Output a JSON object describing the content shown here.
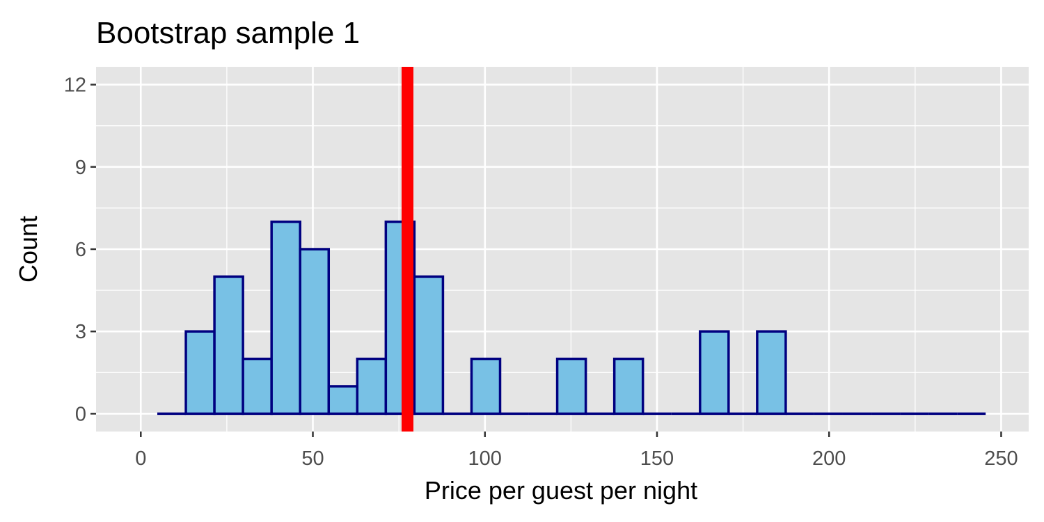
{
  "chart_data": {
    "type": "bar",
    "title": "Bootstrap sample 1",
    "xlabel": "Price per guest per night",
    "ylabel": "Count",
    "bin_width": 8.3,
    "bins": [
      {
        "x0": 4.8,
        "x1": 13.1,
        "count": 0
      },
      {
        "x0": 13.1,
        "x1": 21.4,
        "count": 3
      },
      {
        "x0": 21.4,
        "x1": 29.7,
        "count": 5
      },
      {
        "x0": 29.7,
        "x1": 38.0,
        "count": 2
      },
      {
        "x0": 38.0,
        "x1": 46.3,
        "count": 7
      },
      {
        "x0": 46.3,
        "x1": 54.6,
        "count": 6
      },
      {
        "x0": 54.6,
        "x1": 62.9,
        "count": 1
      },
      {
        "x0": 62.9,
        "x1": 71.2,
        "count": 2
      },
      {
        "x0": 71.2,
        "x1": 79.5,
        "count": 7
      },
      {
        "x0": 79.5,
        "x1": 87.8,
        "count": 5
      },
      {
        "x0": 87.8,
        "x1": 96.1,
        "count": 0
      },
      {
        "x0": 96.1,
        "x1": 104.4,
        "count": 2
      },
      {
        "x0": 104.4,
        "x1": 112.7,
        "count": 0
      },
      {
        "x0": 112.7,
        "x1": 121.0,
        "count": 0
      },
      {
        "x0": 121.0,
        "x1": 129.3,
        "count": 2
      },
      {
        "x0": 129.3,
        "x1": 137.6,
        "count": 0
      },
      {
        "x0": 137.6,
        "x1": 145.9,
        "count": 2
      },
      {
        "x0": 145.9,
        "x1": 154.2,
        "count": 0
      },
      {
        "x0": 154.2,
        "x1": 162.5,
        "count": 0
      },
      {
        "x0": 162.5,
        "x1": 170.8,
        "count": 3
      },
      {
        "x0": 170.8,
        "x1": 179.1,
        "count": 0
      },
      {
        "x0": 179.1,
        "x1": 187.4,
        "count": 3
      },
      {
        "x0": 187.4,
        "x1": 195.7,
        "count": 0
      },
      {
        "x0": 195.7,
        "x1": 204.0,
        "count": 0
      },
      {
        "x0": 204.0,
        "x1": 212.3,
        "count": 0
      },
      {
        "x0": 212.3,
        "x1": 220.6,
        "count": 0
      },
      {
        "x0": 220.6,
        "x1": 228.9,
        "count": 0
      },
      {
        "x0": 228.9,
        "x1": 237.2,
        "count": 0
      },
      {
        "x0": 237.2,
        "x1": 245.5,
        "count": 0
      }
    ],
    "reference_line": {
      "x": 77.5,
      "color": "#ff0000"
    },
    "xlim": [
      -13,
      258
    ],
    "ylim": [
      -0.65,
      12.65
    ],
    "x_ticks": [
      0,
      50,
      100,
      150,
      200,
      250
    ],
    "x_tick_labels": [
      "0",
      "50",
      "100",
      "150",
      "200",
      "250"
    ],
    "y_ticks": [
      0,
      3,
      6,
      9,
      12
    ],
    "y_tick_labels": [
      "0",
      "3",
      "6",
      "9",
      "12"
    ],
    "grid": true,
    "colors": {
      "panel_background": "#e5e5e5",
      "grid_line": "#ffffff",
      "bar_fill": "#78c1e5",
      "bar_outline": "#000080",
      "tick_label": "#4d4d4d",
      "axis_tick": "#333333"
    }
  }
}
